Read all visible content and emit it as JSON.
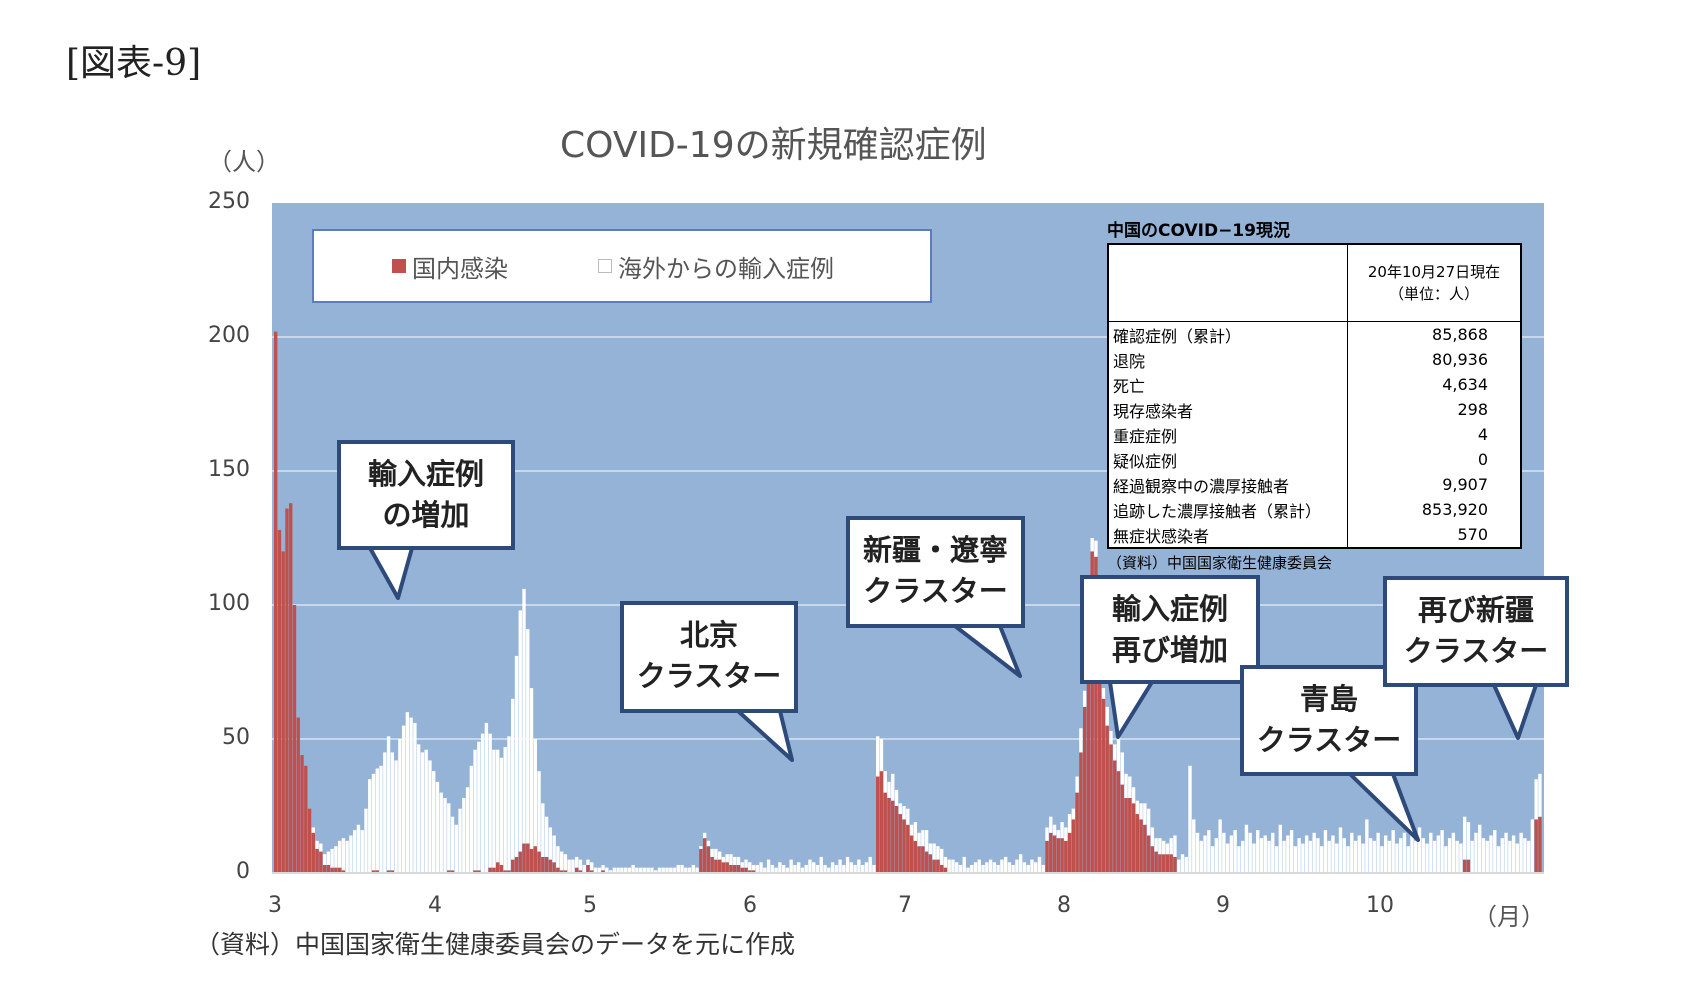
{
  "figure_label": "[図表-9]",
  "source_note": "（資料）中国国家衛生健康委員会のデータを元に作成",
  "chart_data": {
    "type": "bar",
    "stacked": true,
    "title": "COVID-19の新規確認症例",
    "y_unit": "（人）",
    "x_unit": "（月）",
    "ylim": [
      0,
      250
    ],
    "y_ticks": [
      "250",
      "200",
      "150",
      "100",
      "50",
      "0"
    ],
    "x_ticks": [
      "3",
      "4",
      "5",
      "6",
      "7",
      "8",
      "9",
      "10"
    ],
    "grid": true,
    "legend_position": "top-left",
    "background_color": "#95b3d7",
    "series": [
      {
        "name": "国内感染",
        "color": "#c0504d",
        "values": [
          202,
          128,
          120,
          136,
          138,
          100,
          58,
          44,
          40,
          24,
          15,
          9,
          8,
          3,
          3,
          2,
          2,
          2,
          1,
          0,
          0,
          0,
          0,
          0,
          0,
          0,
          1,
          1,
          0,
          0,
          1,
          1,
          0,
          0,
          0,
          0,
          0,
          0,
          0,
          0,
          0,
          0,
          0,
          0,
          0,
          0,
          1,
          1,
          0,
          0,
          0,
          0,
          0,
          1,
          1,
          0,
          0,
          2,
          2,
          4,
          3,
          1,
          1,
          5,
          6,
          8,
          11,
          11,
          9,
          10,
          8,
          6,
          6,
          5,
          4,
          2,
          1,
          1,
          0,
          0,
          2,
          1,
          0,
          3,
          1,
          0,
          0,
          1,
          0,
          0,
          0,
          0,
          0,
          0,
          0,
          0,
          0,
          0,
          0,
          0,
          0,
          0,
          0,
          0,
          0,
          0,
          0,
          0,
          0,
          0,
          0,
          0,
          0,
          9,
          13,
          10,
          6,
          5,
          5,
          4,
          4,
          3,
          3,
          3,
          2,
          2,
          1,
          1,
          0,
          0,
          0,
          0,
          0,
          0,
          0,
          0,
          0,
          0,
          0,
          0,
          0,
          0,
          0,
          0,
          0,
          0,
          0,
          0,
          0,
          0,
          0,
          0,
          0,
          0,
          0,
          0,
          0,
          0,
          0,
          0,
          36,
          38,
          30,
          28,
          27,
          25,
          22,
          20,
          18,
          14,
          12,
          10,
          10,
          8,
          7,
          5,
          5,
          3,
          2,
          0,
          0,
          0,
          0,
          0,
          0,
          0,
          0,
          0,
          0,
          0,
          0,
          0,
          0,
          0,
          0,
          0,
          0,
          0,
          0,
          0,
          0,
          0,
          0,
          0,
          0,
          12,
          15,
          14,
          13,
          13,
          12,
          15,
          20,
          30,
          45,
          62,
          96,
          120,
          118,
          90,
          65,
          55,
          48,
          42,
          38,
          33,
          28,
          28,
          26,
          22,
          20,
          18,
          14,
          10,
          8,
          7,
          7,
          7,
          7,
          6,
          0,
          0,
          0,
          0,
          0,
          0,
          0,
          0,
          0,
          0,
          0,
          0,
          0,
          0,
          0,
          0,
          0,
          0,
          0,
          0,
          0,
          0,
          0,
          0,
          0,
          0,
          0,
          0,
          0,
          0,
          0,
          0,
          0,
          0,
          0,
          0,
          0,
          0,
          0,
          0,
          0,
          0,
          0,
          0,
          0,
          0,
          0,
          0,
          0,
          0,
          0,
          0,
          0,
          0,
          0,
          0,
          0,
          0,
          0,
          0,
          0,
          0,
          0,
          0,
          0,
          0,
          0,
          0,
          0,
          0,
          0,
          0,
          0,
          0,
          0,
          0,
          5,
          5,
          0,
          0,
          0,
          0,
          0,
          0,
          0,
          0,
          0,
          0,
          0,
          0,
          0,
          0,
          0,
          0,
          0,
          20,
          21
        ]
      },
      {
        "name": "海外からの輸入症例",
        "color": "#ffffff",
        "values": [
          0,
          0,
          0,
          0,
          0,
          0,
          0,
          0,
          0,
          0,
          2,
          3,
          3,
          4,
          5,
          7,
          8,
          10,
          12,
          12,
          14,
          16,
          18,
          16,
          24,
          35,
          36,
          38,
          40,
          45,
          50,
          44,
          42,
          50,
          55,
          60,
          58,
          56,
          48,
          45,
          46,
          42,
          38,
          34,
          30,
          28,
          25,
          20,
          18,
          24,
          28,
          32,
          40,
          45,
          48,
          52,
          56,
          50,
          44,
          42,
          40,
          46,
          50,
          60,
          75,
          90,
          95,
          80,
          60,
          40,
          30,
          20,
          15,
          12,
          10,
          8,
          7,
          6,
          5,
          5,
          4,
          4,
          3,
          2,
          3,
          2,
          2,
          2,
          2,
          1,
          2,
          2,
          2,
          2,
          2,
          3,
          2,
          2,
          2,
          2,
          2,
          1,
          2,
          2,
          2,
          2,
          2,
          3,
          3,
          2,
          2,
          3,
          2,
          1,
          2,
          2,
          3,
          4,
          3,
          2,
          3,
          4,
          3,
          3,
          2,
          3,
          3,
          2,
          3,
          4,
          2,
          5,
          3,
          2,
          4,
          3,
          2,
          5,
          3,
          4,
          2,
          3,
          5,
          4,
          3,
          6,
          3,
          2,
          4,
          3,
          5,
          3,
          6,
          4,
          3,
          5,
          3,
          4,
          6,
          3,
          15,
          12,
          8,
          6,
          10,
          6,
          4,
          5,
          6,
          4,
          7,
          5,
          6,
          8,
          4,
          6,
          5,
          6,
          4,
          5,
          5,
          4,
          3,
          6,
          2,
          3,
          4,
          5,
          3,
          4,
          5,
          4,
          3,
          5,
          6,
          4,
          3,
          5,
          7,
          4,
          3,
          5,
          4,
          6,
          3,
          5,
          6,
          4,
          3,
          6,
          5,
          7,
          4,
          6,
          9,
          6,
          4,
          5,
          6,
          5,
          4,
          7,
          5,
          6,
          14,
          12,
          9,
          8,
          6,
          5,
          6,
          8,
          10,
          7,
          5,
          6,
          5,
          4,
          6,
          8,
          5,
          7,
          6,
          40,
          20,
          15,
          12,
          14,
          16,
          10,
          13,
          20,
          15,
          11,
          14,
          16,
          10,
          12,
          18,
          15,
          11,
          16,
          13,
          14,
          12,
          15,
          10,
          18,
          12,
          14,
          16,
          10,
          13,
          11,
          14,
          12,
          15,
          13,
          10,
          16,
          12,
          14,
          11,
          17,
          13,
          10,
          15,
          12,
          14,
          11,
          20,
          13,
          12,
          15,
          10,
          14,
          12,
          16,
          11,
          13,
          15,
          10,
          14,
          12,
          17,
          13,
          11,
          15,
          12,
          14,
          16,
          10,
          13,
          15,
          12,
          11,
          16,
          14,
          12,
          15,
          18,
          13,
          12,
          14,
          16,
          10,
          13,
          15,
          12,
          14,
          11,
          15,
          13,
          12,
          20,
          15,
          16,
          14,
          13,
          18,
          22,
          15,
          14,
          17,
          20
        ]
      }
    ]
  },
  "legend": {
    "domestic": "国内感染",
    "imported": "海外からの輸入症例"
  },
  "callouts": [
    {
      "id": "callout-import-increase",
      "lines": [
        "輸入症例",
        "の増加"
      ]
    },
    {
      "id": "callout-beijing",
      "lines": [
        "北京",
        "クラスター"
      ]
    },
    {
      "id": "callout-xinjiang-liaoning",
      "lines": [
        "新疆・遼寧",
        "クラスター"
      ]
    },
    {
      "id": "callout-import-again",
      "lines": [
        "輸入症例",
        "再び増加"
      ]
    },
    {
      "id": "callout-qingdao",
      "lines": [
        "青島",
        "クラスター"
      ]
    },
    {
      "id": "callout-xinjiang-again",
      "lines": [
        "再び新疆",
        "クラスター"
      ]
    }
  ],
  "summary_table": {
    "title": "中国のCOVID−19現況",
    "header_line1": "20年10月27日現在",
    "header_line2": "（単位：人）",
    "rows": [
      {
        "label": "確認症例（累計）",
        "value": "85,868"
      },
      {
        "label": "退院",
        "value": "80,936"
      },
      {
        "label": "死亡",
        "value": "4,634"
      },
      {
        "label": "現存感染者",
        "value": "298"
      },
      {
        "label": "重症症例",
        "value": "4"
      },
      {
        "label": "疑似症例",
        "value": "0"
      },
      {
        "label": "経過観察中の濃厚接触者",
        "value": "9,907"
      },
      {
        "label": "追跡した濃厚接触者（累計）",
        "value": "853,920"
      },
      {
        "label": "無症状感染者",
        "value": "570"
      }
    ],
    "note": "（資料）中国国家衛生健康委員会"
  }
}
